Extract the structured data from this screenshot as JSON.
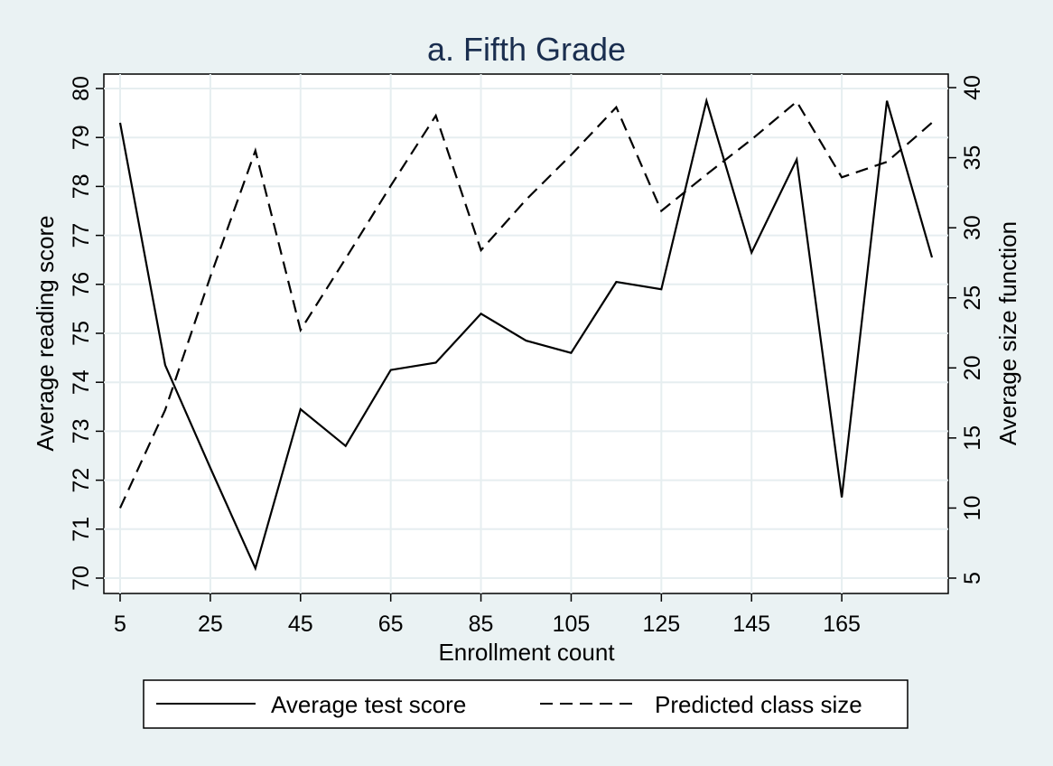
{
  "chart_data": {
    "type": "line",
    "title": "a. Fifth Grade",
    "xlabel": "Enrollment count",
    "ylabel_left": "Average reading score",
    "ylabel_right": "Average size function",
    "x_ticks": [
      5,
      25,
      45,
      65,
      85,
      105,
      125,
      145,
      165
    ],
    "x_tick_labels": [
      "5",
      "25",
      "45",
      "65",
      "85",
      "105",
      "125",
      "145",
      "165"
    ],
    "xlim": [
      5,
      185
    ],
    "y_left_ticks": [
      70,
      71,
      72,
      73,
      74,
      75,
      76,
      77,
      78,
      79,
      80
    ],
    "y_left_tick_labels": [
      "70",
      "71",
      "72",
      "73",
      "74",
      "75",
      "76",
      "77",
      "78",
      "79",
      "80"
    ],
    "y_left_lim": [
      70,
      80
    ],
    "y_right_ticks": [
      5,
      10,
      15,
      20,
      25,
      30,
      35,
      40
    ],
    "y_right_tick_labels": [
      "5",
      "10",
      "15",
      "20",
      "25",
      "30",
      "35",
      "40"
    ],
    "y_right_lim": [
      5,
      40
    ],
    "grid": true,
    "legend_position": "bottom",
    "x": [
      5,
      15,
      25,
      35,
      45,
      55,
      65,
      75,
      85,
      95,
      105,
      115,
      125,
      135,
      145,
      155,
      165,
      175,
      185
    ],
    "series": [
      {
        "name": "Average test score",
        "axis": "left",
        "style": "solid",
        "color": "#000000",
        "values": [
          79.3,
          74.35,
          72.25,
          70.2,
          73.45,
          72.7,
          74.25,
          74.4,
          75.4,
          74.85,
          74.6,
          76.05,
          75.9,
          79.75,
          76.65,
          78.55,
          71.65,
          79.75,
          76.55
        ]
      },
      {
        "name": "Predicted class size",
        "axis": "right",
        "style": "dashed",
        "color": "#000000",
        "x": [
          5,
          15,
          25,
          35,
          45,
          55,
          65,
          75,
          85,
          95,
          105,
          115,
          125,
          135,
          145,
          155,
          165,
          175,
          185
        ],
        "values": [
          10,
          17,
          26.5,
          35.5,
          22.7,
          27.8,
          33,
          38,
          28.4,
          32,
          35.2,
          38.6,
          31.2,
          33.8,
          36.3,
          39,
          33.6,
          34.7,
          37.5
        ]
      }
    ]
  }
}
